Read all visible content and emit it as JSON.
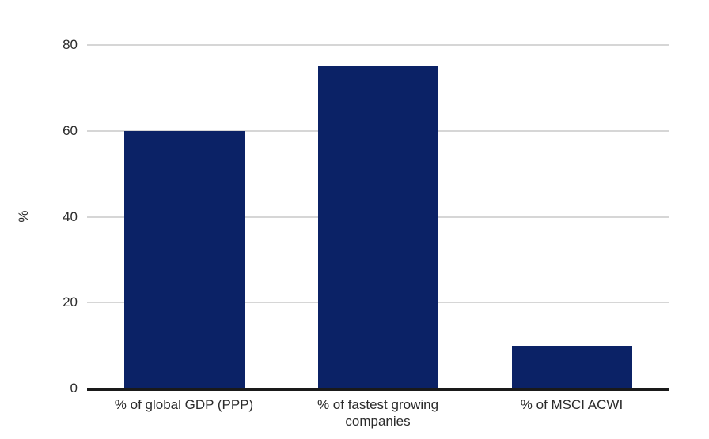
{
  "chart_data": {
    "type": "bar",
    "title": "",
    "xlabel": "",
    "ylabel": "%",
    "categories": [
      "% of global GDP (PPP)",
      "% of fastest growing companies",
      "% of MSCI ACWI"
    ],
    "values": [
      60,
      75,
      10
    ],
    "ylim": [
      0,
      80
    ],
    "yticks": [
      0,
      20,
      40,
      60,
      80
    ],
    "grid": "horizontal",
    "legend_position": "none",
    "colors": {
      "bar": "#0b2266",
      "gridline": "#d6d6d6",
      "axis_line": "#1a1a1a",
      "text": "#2b2b2b",
      "background": "#ffffff"
    }
  }
}
